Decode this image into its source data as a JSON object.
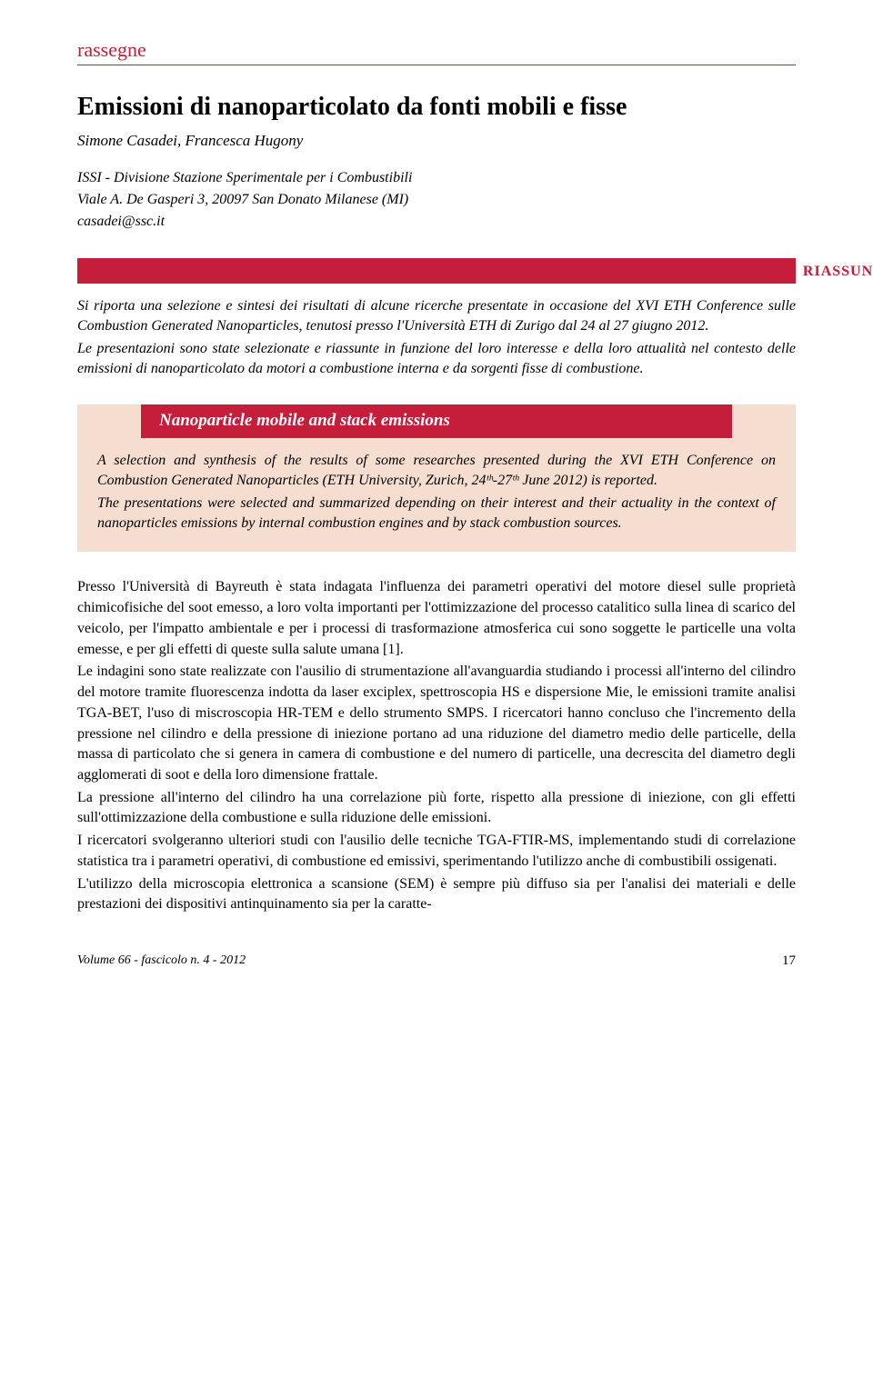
{
  "section_label": "rassegne",
  "article_title": "Emissioni di nanoparticolato da fonti mobili e fisse",
  "authors": "Simone Casadei, Francesca Hugony",
  "affiliation": "ISSI - Divisione Stazione Sperimentale per i Combustibili",
  "affiliation_address": "Viale A. De Gasperi 3, 20097 San Donato Milanese (MI)",
  "email": "casadei@ssc.it",
  "riassunto_label": "RIASSUNTO",
  "italian_abstract_p1": "Si riporta una selezione e sintesi dei risultati di alcune ricerche presentate in occasione del XVI ETH Conference sulle Combustion Generated Nanoparticles, tenutosi presso l'Università ETH di Zurigo dal 24 al 27 giugno 2012.",
  "italian_abstract_p2": "Le presentazioni sono state selezionate e riassunte in funzione del loro interesse e della loro attualità nel contesto delle emissioni di nanoparticolato da motori a combustione interna e da sorgenti fisse di combustione.",
  "english_title": "Nanoparticle mobile and stack emissions",
  "english_abstract_p1": "A selection and synthesis of the results of some researches presented during the XVI ETH Conference on Combustion Generated Nanoparticles (ETH University, Zurich, 24ᵗʰ-27ᵗʰ June 2012) is reported.",
  "english_abstract_p2": "The presentations were selected and summarized depending on their interest and their actuality in the context of nanoparticles emissions by internal combustion engines and by stack combustion sources.",
  "body_p1": "Presso l'Università di Bayreuth è stata indagata l'influenza dei parametri operativi del motore diesel sulle proprietà chimicofisiche del soot emesso, a loro volta importanti per l'ottimizzazione del processo catalitico sulla linea di scarico del veicolo, per l'impatto ambientale e per i processi di trasformazione atmosferica cui sono soggette le particelle una volta emesse, e per gli effetti di queste sulla salute umana [1].",
  "body_p2": "Le indagini sono state realizzate con l'ausilio di strumentazione all'avanguardia studiando i processi all'interno del cilindro del motore tramite fluorescenza indotta da laser exciplex, spettroscopia HS e dispersione Mie, le emissioni tramite analisi TGA-BET, l'uso di miscroscopia HR-TEM e dello strumento SMPS. I ricercatori hanno concluso che l'incremento della pressione nel cilindro e della pressione di iniezione portano ad una riduzione del diametro medio delle particelle, della massa di particolato che si genera in camera di combustione e del numero di particelle, una decrescita del diametro degli agglomerati di soot e della loro dimensione frattale.",
  "body_p3": "La pressione all'interno del cilindro ha una correlazione più forte, rispetto alla pressione di iniezione, con gli effetti sull'ottimizzazione della combustione e sulla riduzione delle emissioni.",
  "body_p4": "I ricercatori svolgeranno ulteriori studi con l'ausilio delle tecniche TGA-FTIR-MS, implementando studi di correlazione statistica tra i parametri operativi, di combustione ed emissivi, sperimentando l'utilizzo anche di combustibili ossigenati.",
  "body_p5": "L'utilizzo della microscopia elettronica a scansione (SEM) è sempre più diffuso sia per l'analisi dei materiali e delle prestazioni dei dispositivi antinquinamento sia per la caratte-",
  "footer_issue": "Volume 66 - fascicolo n. 4 - 2012",
  "page_number": "17",
  "colors": {
    "accent_red": "#c41e3a",
    "peach_bg": "#f5ddd0",
    "text_black": "#000000",
    "white": "#ffffff"
  }
}
